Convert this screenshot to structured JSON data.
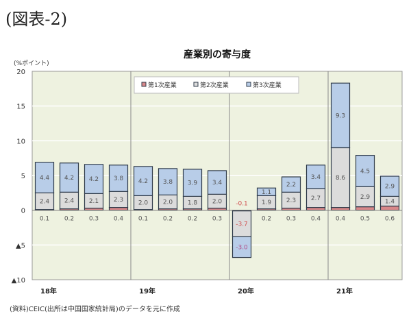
{
  "heading": "(図表-2)",
  "note": "(資料)CEIC(出所は中国国家統計局)のデータを元に作成",
  "chart_data": {
    "type": "bar",
    "stacked": true,
    "title": "産業別の寄与度",
    "ylabel": "(%ポイント)",
    "ylim": [
      -10,
      20
    ],
    "yticks": [
      {
        "v": 20,
        "label": "20"
      },
      {
        "v": 15,
        "label": "15"
      },
      {
        "v": 10,
        "label": "10"
      },
      {
        "v": 5,
        "label": "5"
      },
      {
        "v": 0,
        "label": "0"
      },
      {
        "v": -5,
        "label": "▲5"
      },
      {
        "v": -10,
        "label": "▲10"
      }
    ],
    "groups": [
      {
        "label": "18年",
        "count": 4
      },
      {
        "label": "19年",
        "count": 4
      },
      {
        "label": "20年",
        "count": 4
      },
      {
        "label": "21年",
        "count": 3
      }
    ],
    "legend_position": "top-center",
    "grid": true,
    "colors": {
      "plot_bg": "#eef2e0",
      "s1": "#d9888a",
      "s2": "#dcdcdc",
      "s3": "#b8cde8",
      "edge": "#2f3b4a"
    },
    "series": [
      {
        "name": "第1次産業",
        "values": [
          0.1,
          0.2,
          0.3,
          0.4,
          0.1,
          0.2,
          0.2,
          0.3,
          -0.1,
          0.2,
          0.3,
          0.4,
          0.4,
          0.5,
          0.6
        ]
      },
      {
        "name": "第2次産業",
        "values": [
          2.4,
          2.4,
          2.1,
          2.3,
          2.0,
          2.0,
          1.8,
          2.0,
          -3.7,
          1.9,
          2.3,
          2.7,
          8.6,
          2.9,
          1.4
        ]
      },
      {
        "name": "第3次産業",
        "values": [
          4.4,
          4.2,
          4.2,
          3.8,
          4.2,
          3.8,
          3.9,
          3.4,
          -3.0,
          1.1,
          2.2,
          3.4,
          9.3,
          4.5,
          2.9
        ]
      }
    ]
  }
}
